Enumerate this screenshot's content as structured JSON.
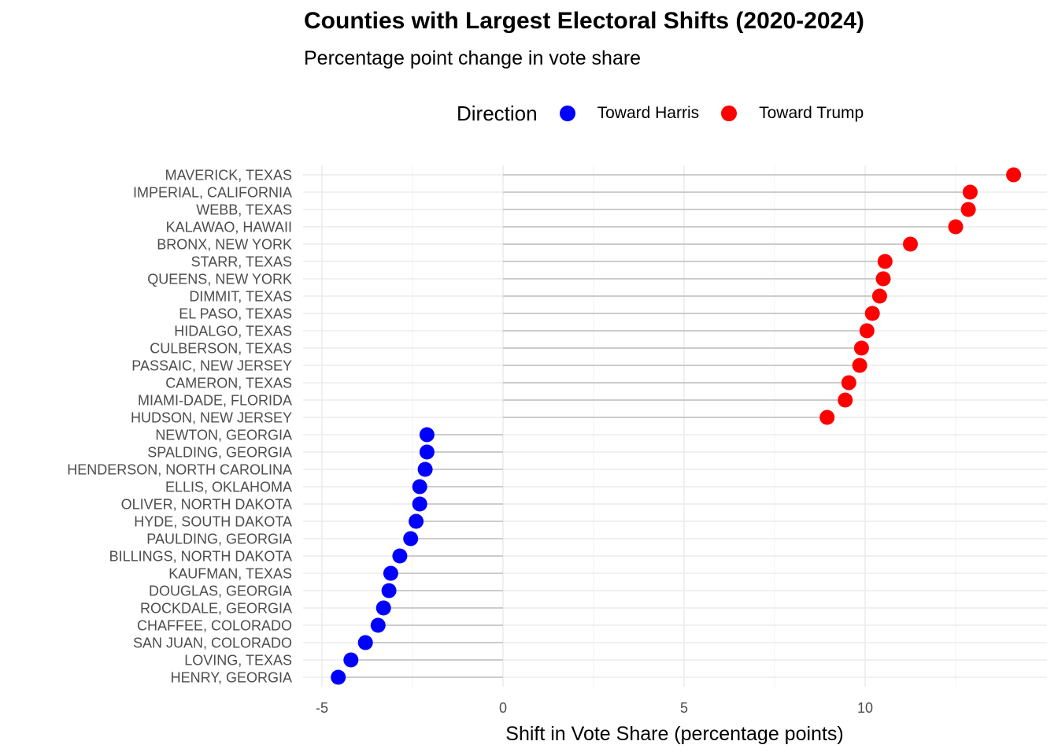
{
  "chart_data": {
    "type": "scatter",
    "subtype": "lollipop",
    "title": "Counties with Largest Electoral Shifts (2020-2024)",
    "subtitle": "Percentage point change in vote share",
    "xlabel": "Shift in Vote Share (percentage points)",
    "ylabel": "",
    "xlim": [
      -5,
      14
    ],
    "x_ticks": [
      "-5",
      "0",
      "5",
      "10"
    ],
    "grid": true,
    "legend": {
      "title": "Direction",
      "position": "top",
      "entries": [
        {
          "label": "Toward Harris",
          "color": "#0000ff"
        },
        {
          "label": "Toward Trump",
          "color": "#ff0000"
        }
      ]
    },
    "categories": [
      "MAVERICK, TEXAS",
      "IMPERIAL, CALIFORNIA",
      "WEBB, TEXAS",
      "KALAWAO, HAWAII",
      "BRONX, NEW YORK",
      "STARR, TEXAS",
      "QUEENS, NEW YORK",
      "DIMMIT, TEXAS",
      "EL PASO, TEXAS",
      "HIDALGO, TEXAS",
      "CULBERSON, TEXAS",
      "PASSAIC, NEW JERSEY",
      "CAMERON, TEXAS",
      "MIAMI-DADE, FLORIDA",
      "HUDSON, NEW JERSEY",
      "NEWTON, GEORGIA",
      "SPALDING, GEORGIA",
      "HENDERSON, NORTH CAROLINA",
      "ELLIS, OKLAHOMA",
      "OLIVER, NORTH DAKOTA",
      "HYDE, SOUTH DAKOTA",
      "PAULDING, GEORGIA",
      "BILLINGS, NORTH DAKOTA",
      "KAUFMAN, TEXAS",
      "DOUGLAS, GEORGIA",
      "ROCKDALE, GEORGIA",
      "CHAFFEE, COLORADO",
      "SAN JUAN, COLORADO",
      "LOVING, TEXAS",
      "HENRY, GEORGIA"
    ],
    "values": [
      14.1,
      12.9,
      12.85,
      12.5,
      11.25,
      10.55,
      10.5,
      10.4,
      10.2,
      10.05,
      9.9,
      9.85,
      9.55,
      9.45,
      8.95,
      -2.1,
      -2.1,
      -2.15,
      -2.3,
      -2.3,
      -2.4,
      -2.55,
      -2.85,
      -3.1,
      -3.15,
      -3.3,
      -3.45,
      -3.8,
      -4.2,
      -4.55
    ],
    "directions": [
      "Toward Trump",
      "Toward Trump",
      "Toward Trump",
      "Toward Trump",
      "Toward Trump",
      "Toward Trump",
      "Toward Trump",
      "Toward Trump",
      "Toward Trump",
      "Toward Trump",
      "Toward Trump",
      "Toward Trump",
      "Toward Trump",
      "Toward Trump",
      "Toward Trump",
      "Toward Harris",
      "Toward Harris",
      "Toward Harris",
      "Toward Harris",
      "Toward Harris",
      "Toward Harris",
      "Toward Harris",
      "Toward Harris",
      "Toward Harris",
      "Toward Harris",
      "Toward Harris",
      "Toward Harris",
      "Toward Harris",
      "Toward Harris",
      "Toward Harris"
    ],
    "segment_color": "#bebebe"
  }
}
